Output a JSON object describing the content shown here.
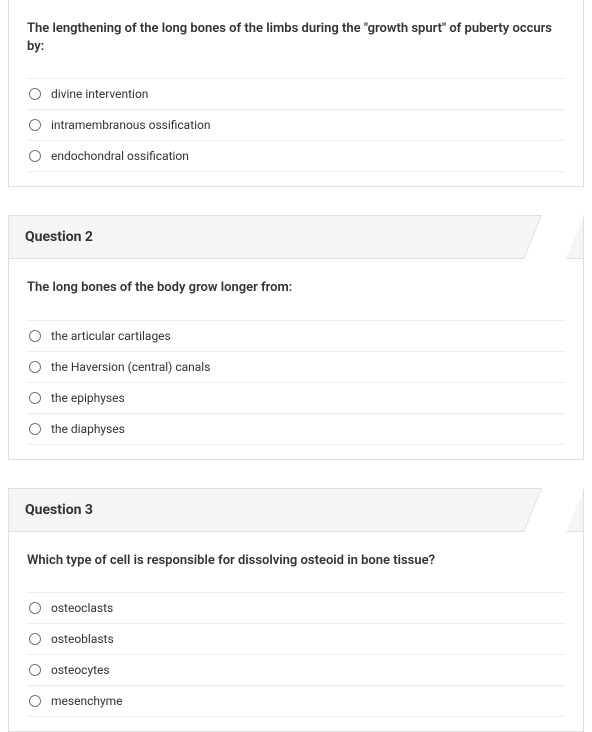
{
  "questions": [
    {
      "key": "q1",
      "header": "",
      "text": "The lengthening of the long bones of the limbs during the \"growth spurt\" of puberty occurs by:",
      "options": [
        "divine intervention",
        "intramembranous ossification",
        "endochondral ossification"
      ]
    },
    {
      "key": "q2",
      "header": "Question 2",
      "text": "The long bones of the body grow longer from:",
      "options": [
        "the articular cartilages",
        "the Haversion (central) canals",
        "the epiphyses",
        "the diaphyses"
      ]
    },
    {
      "key": "q3",
      "header": "Question 3",
      "text": "Which type of cell is responsible for dissolving osteoid in bone tissue?",
      "options": [
        "osteoclasts",
        "osteoblasts",
        "osteocytes",
        "mesenchyme"
      ]
    }
  ]
}
